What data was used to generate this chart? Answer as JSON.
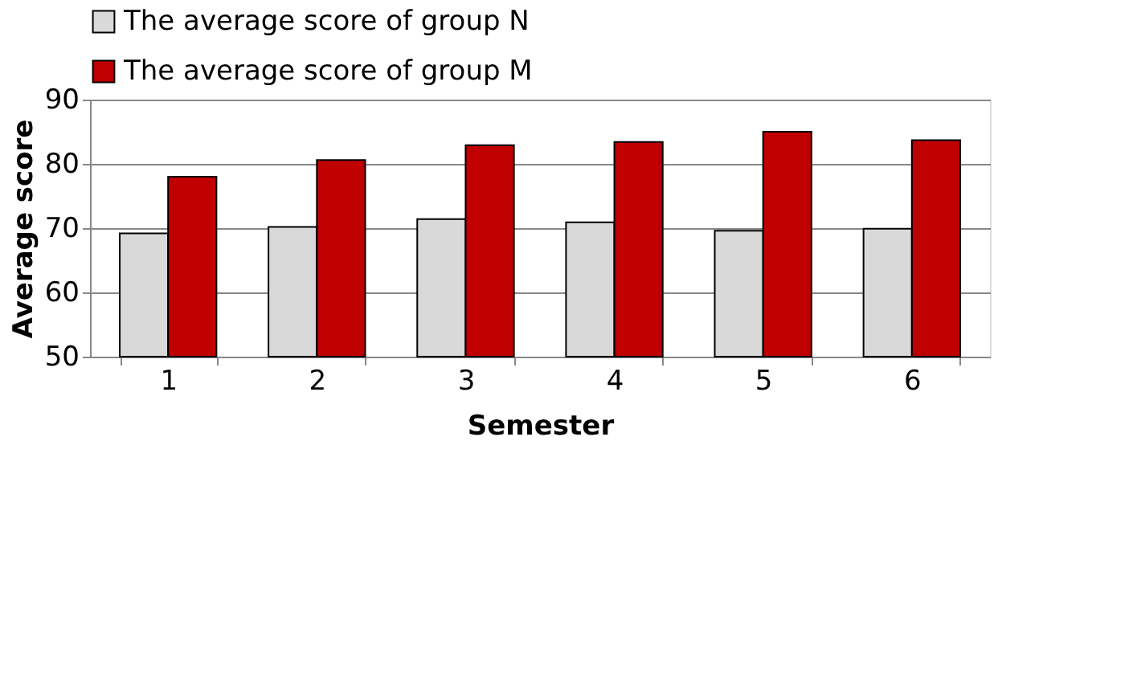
{
  "chart_data": {
    "type": "bar",
    "xlabel": "Semester",
    "ylabel": "Average score",
    "categories": [
      "1",
      "2",
      "3",
      "4",
      "5",
      "6"
    ],
    "series": [
      {
        "name": "The average score of group N",
        "color": "#d9d9d9",
        "values": [
          69.2,
          70.2,
          71.4,
          70.9,
          69.6,
          69.9
        ]
      },
      {
        "name": "The average score of group M",
        "color": "#c00000",
        "values": [
          78.0,
          80.6,
          82.9,
          83.4,
          85.0,
          83.7
        ]
      }
    ],
    "ylim": [
      50,
      90
    ],
    "yticks": [
      50,
      60,
      70,
      80,
      90
    ],
    "grid": "y",
    "legend": "top"
  }
}
